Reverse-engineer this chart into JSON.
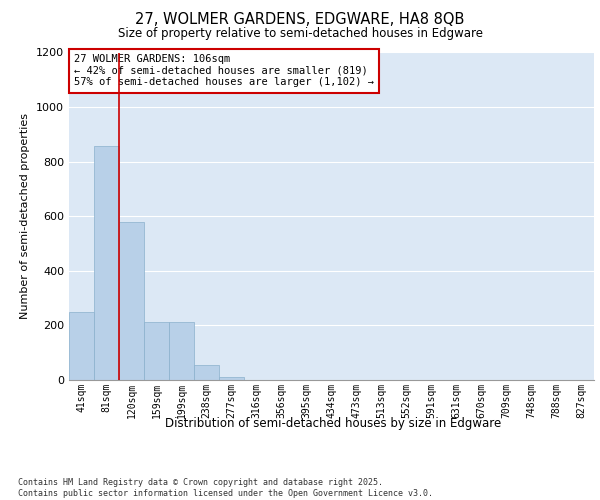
{
  "title_line1": "27, WOLMER GARDENS, EDGWARE, HA8 8QB",
  "title_line2": "Size of property relative to semi-detached houses in Edgware",
  "xlabel": "Distribution of semi-detached houses by size in Edgware",
  "ylabel": "Number of semi-detached properties",
  "categories": [
    "41sqm",
    "81sqm",
    "120sqm",
    "159sqm",
    "199sqm",
    "238sqm",
    "277sqm",
    "316sqm",
    "356sqm",
    "395sqm",
    "434sqm",
    "473sqm",
    "513sqm",
    "552sqm",
    "591sqm",
    "631sqm",
    "670sqm",
    "709sqm",
    "748sqm",
    "788sqm",
    "827sqm"
  ],
  "values": [
    248,
    858,
    578,
    213,
    213,
    55,
    10,
    0,
    0,
    0,
    0,
    0,
    0,
    0,
    0,
    0,
    0,
    0,
    0,
    0,
    0
  ],
  "bar_color": "#b8d0e8",
  "bar_edge_color": "#8ab0cc",
  "vline_x": 1.5,
  "annotation_text": "27 WOLMER GARDENS: 106sqm\n← 42% of semi-detached houses are smaller (819)\n57% of semi-detached houses are larger (1,102) →",
  "annotation_box_color": "#ffffff",
  "annotation_box_edge": "#cc0000",
  "vline_color": "#cc0000",
  "ylim": [
    0,
    1200
  ],
  "yticks": [
    0,
    200,
    400,
    600,
    800,
    1000,
    1200
  ],
  "background_color": "#dce8f5",
  "footnote": "Contains HM Land Registry data © Crown copyright and database right 2025.\nContains public sector information licensed under the Open Government Licence v3.0."
}
